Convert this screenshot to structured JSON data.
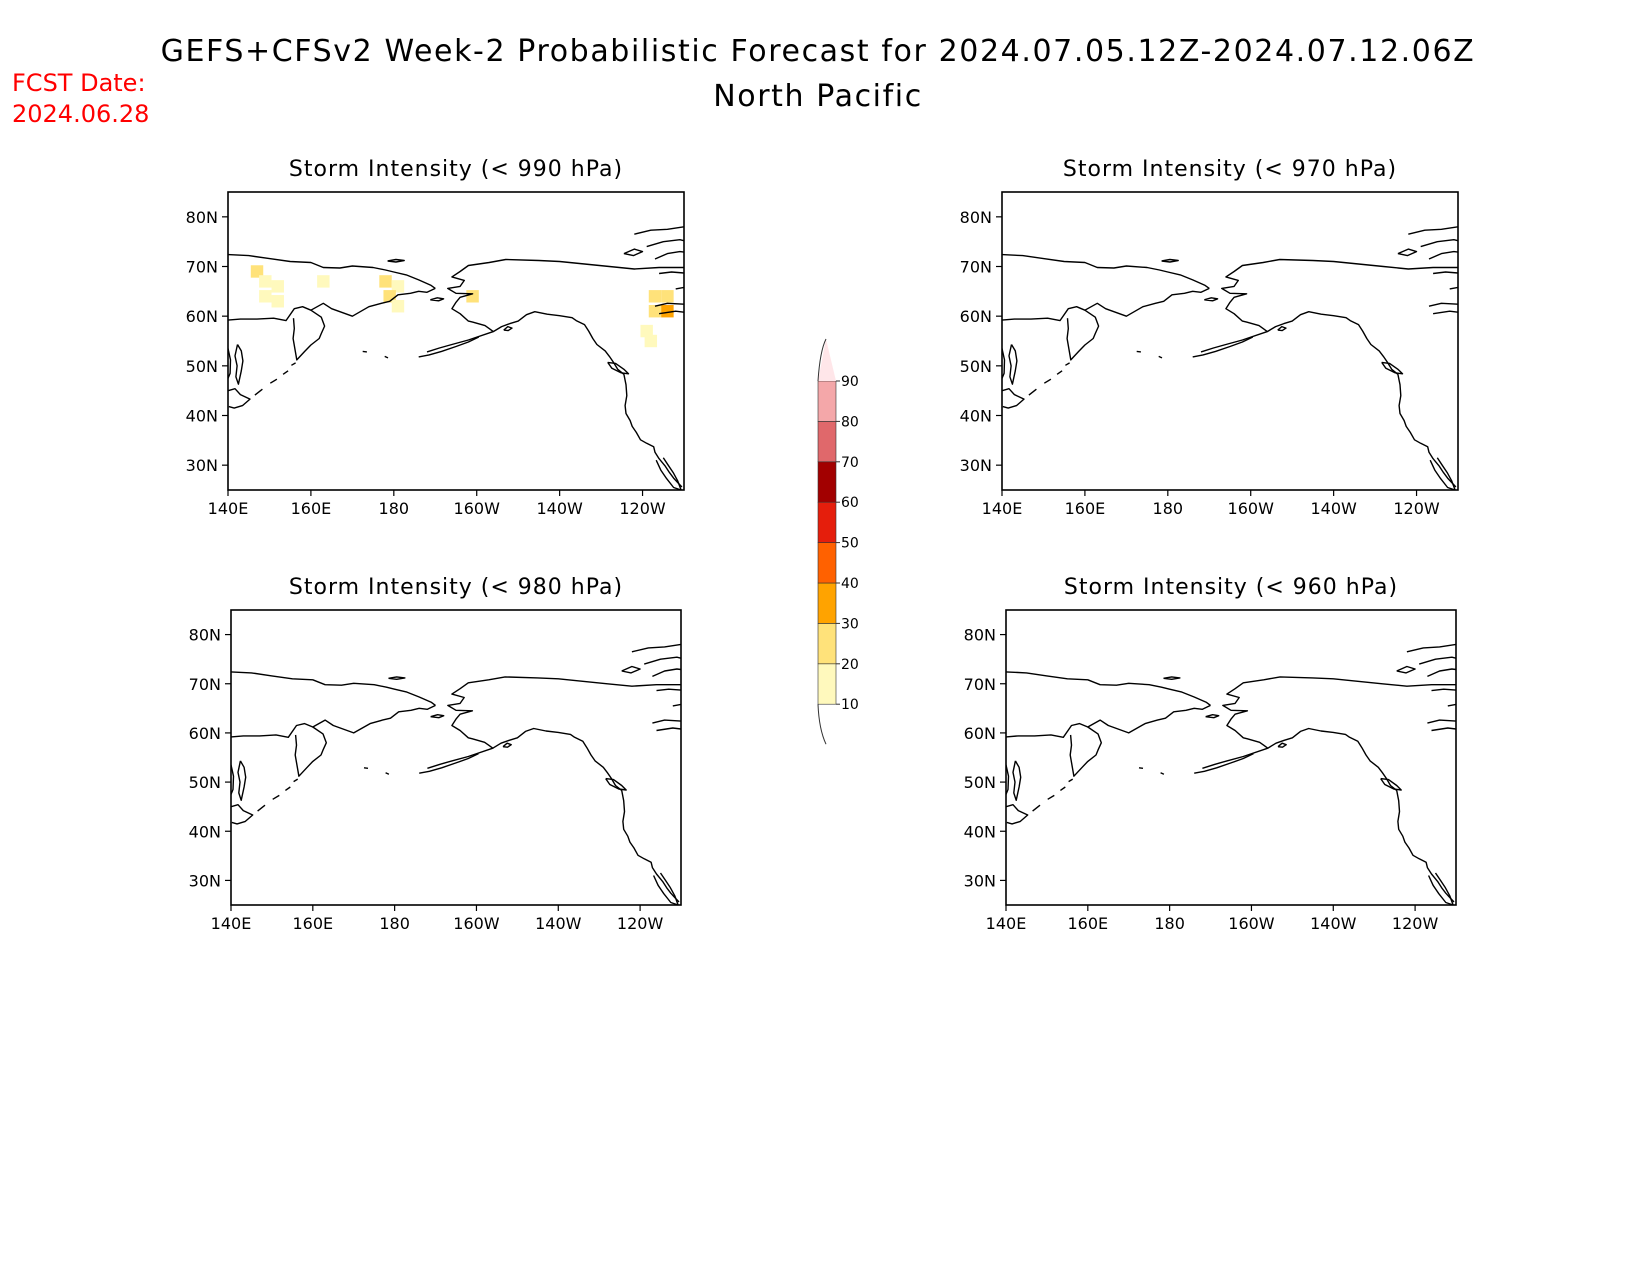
{
  "header": {
    "title": "GEFS+CFSv2 Week-2 Probabilistic Forecast for 2024.07.05.12Z-2024.07.12.06Z",
    "region": "North Pacific",
    "fcst_label": "FCST Date:",
    "fcst_date": "2024.06.28"
  },
  "axes": {
    "lon_labels": [
      "140E",
      "160E",
      "180",
      "160W",
      "140W",
      "120W"
    ],
    "lat_labels": [
      "80N",
      "70N",
      "60N",
      "50N",
      "40N",
      "30N"
    ]
  },
  "panels": [
    {
      "title": "Storm Intensity (< 990 hPa)",
      "cells": [
        {
          "lon": 147,
          "lat": 69,
          "p": 20
        },
        {
          "lon": 149,
          "lat": 67,
          "p": 10
        },
        {
          "lon": 149,
          "lat": 64,
          "p": 10
        },
        {
          "lon": 152,
          "lat": 66,
          "p": 10
        },
        {
          "lon": 152,
          "lat": 63,
          "p": 10
        },
        {
          "lon": 163,
          "lat": 67,
          "p": 10
        },
        {
          "lon": 178,
          "lat": 67,
          "p": 20
        },
        {
          "lon": 181,
          "lat": 66,
          "p": 10
        },
        {
          "lon": 179,
          "lat": 64,
          "p": 20
        },
        {
          "lon": 181,
          "lat": 62,
          "p": 10
        },
        {
          "lon": 199,
          "lat": 64,
          "p": 20
        },
        {
          "lon": 243,
          "lat": 64,
          "p": 20
        },
        {
          "lon": 246,
          "lat": 64,
          "p": 20
        },
        {
          "lon": 243,
          "lat": 61,
          "p": 20
        },
        {
          "lon": 246,
          "lat": 61,
          "p": 30
        },
        {
          "lon": 241,
          "lat": 57,
          "p": 10
        },
        {
          "lon": 242,
          "lat": 55,
          "p": 10
        }
      ]
    },
    {
      "title": "Storm Intensity (< 970 hPa)",
      "cells": []
    },
    {
      "title": "Storm Intensity (< 980 hPa)",
      "cells": []
    },
    {
      "title": "Storm Intensity (< 960 hPa)",
      "cells": []
    }
  ],
  "colorbar": {
    "labels": [
      "90",
      "80",
      "70",
      "60",
      "50",
      "40",
      "30",
      "20",
      "10"
    ],
    "colors": [
      "#fff9bd",
      "#ffe27a",
      "#ffa300",
      "#ff6100",
      "#e51e0c",
      "#a20000",
      "#e0686b",
      "#f4a7a9",
      "#ffe6e9"
    ]
  }
}
